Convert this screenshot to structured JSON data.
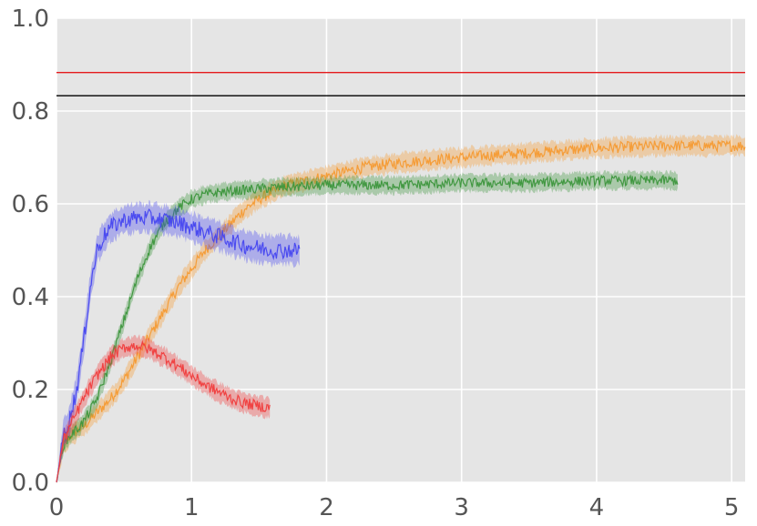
{
  "chart_data": {
    "type": "line",
    "title": "",
    "xlabel": "",
    "ylabel": "",
    "xlim": [
      0,
      5.1
    ],
    "ylim": [
      0,
      1.0
    ],
    "grid": true,
    "legend": "none",
    "x_ticks": [
      {
        "value": 0,
        "label": "0"
      },
      {
        "value": 1,
        "label": "1"
      },
      {
        "value": 2,
        "label": "2"
      },
      {
        "value": 3,
        "label": "3"
      },
      {
        "value": 4,
        "label": "4"
      },
      {
        "value": 5,
        "label": "5"
      }
    ],
    "y_ticks": [
      {
        "value": 0.0,
        "label": "0.0"
      },
      {
        "value": 0.2,
        "label": "0.2"
      },
      {
        "value": 0.4,
        "label": "0.4"
      },
      {
        "value": 0.6,
        "label": "0.6"
      },
      {
        "value": 0.8,
        "label": "0.8"
      },
      {
        "value": 1.0,
        "label": "1.0"
      }
    ],
    "reference_lines": [
      {
        "y": 0.883,
        "color": "#e41a1c"
      },
      {
        "y": 0.833,
        "color": "#000000"
      }
    ],
    "series": [
      {
        "color": "#f59a32",
        "x": [
          0,
          0.05,
          0.1,
          0.2,
          0.3,
          0.4,
          0.5,
          0.6,
          0.7,
          0.8,
          0.9,
          1.0,
          1.1,
          1.2,
          1.3,
          1.4,
          1.5,
          1.7,
          2.0,
          2.3,
          2.6,
          3.0,
          3.5,
          4.0,
          4.5,
          5.1
        ],
        "y": [
          0,
          0.08,
          0.1,
          0.12,
          0.15,
          0.18,
          0.22,
          0.27,
          0.32,
          0.37,
          0.42,
          0.46,
          0.5,
          0.53,
          0.56,
          0.59,
          0.61,
          0.64,
          0.66,
          0.68,
          0.69,
          0.7,
          0.71,
          0.72,
          0.725,
          0.725
        ],
        "band": 0.02
      },
      {
        "color": "#3c963c",
        "x": [
          0,
          0.05,
          0.1,
          0.2,
          0.3,
          0.4,
          0.5,
          0.6,
          0.7,
          0.8,
          0.9,
          1.0,
          1.1,
          1.2,
          1.4,
          1.6,
          2.0,
          2.5,
          3.0,
          3.5,
          4.0,
          4.6
        ],
        "y": [
          0,
          0.08,
          0.1,
          0.13,
          0.18,
          0.26,
          0.35,
          0.44,
          0.51,
          0.56,
          0.59,
          0.61,
          0.62,
          0.625,
          0.63,
          0.635,
          0.64,
          0.64,
          0.645,
          0.645,
          0.65,
          0.65
        ],
        "band": 0.018
      },
      {
        "color": "#4646f0",
        "x": [
          0,
          0.05,
          0.1,
          0.15,
          0.2,
          0.25,
          0.3,
          0.35,
          0.4,
          0.5,
          0.6,
          0.7,
          0.8,
          0.9,
          1.0,
          1.1,
          1.2,
          1.3,
          1.4,
          1.5,
          1.6,
          1.8
        ],
        "y": [
          0,
          0.1,
          0.14,
          0.2,
          0.3,
          0.42,
          0.5,
          0.53,
          0.55,
          0.565,
          0.57,
          0.57,
          0.565,
          0.56,
          0.55,
          0.54,
          0.53,
          0.52,
          0.51,
          0.505,
          0.5,
          0.5
        ],
        "band": 0.03
      },
      {
        "color": "#f03c3c",
        "x": [
          0,
          0.05,
          0.1,
          0.2,
          0.3,
          0.4,
          0.5,
          0.6,
          0.7,
          0.8,
          0.9,
          1.0,
          1.1,
          1.2,
          1.3,
          1.4,
          1.58
        ],
        "y": [
          0,
          0.09,
          0.12,
          0.18,
          0.23,
          0.27,
          0.29,
          0.295,
          0.285,
          0.27,
          0.25,
          0.23,
          0.21,
          0.195,
          0.18,
          0.17,
          0.16
        ],
        "band": 0.02
      }
    ]
  }
}
